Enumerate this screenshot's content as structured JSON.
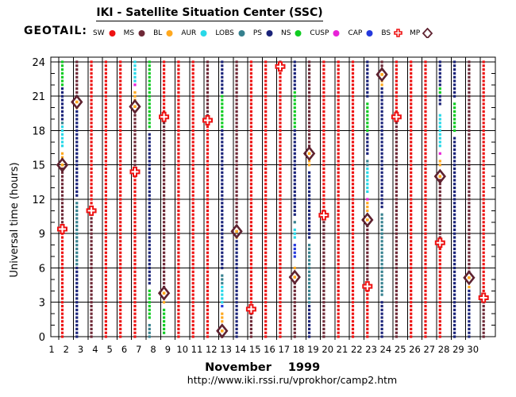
{
  "title": "IKI - Satellite Situation Center (SSC)",
  "satellite_label": "GEOTAIL:",
  "footer": {
    "month": "November",
    "year": "1999",
    "url": "http://www.iki.rssi.ru/vprokhor/camp2.htm"
  },
  "ylabel": "Universal time (hours)",
  "colors": {
    "SW": "#ee1212",
    "MS": "#6e2836",
    "BL": "#ffa81e",
    "AUR": "#28d8e8",
    "LOBS": "#35808e",
    "PS": "#1a2379",
    "NS": "#10cc22",
    "CUSP": "#e822d8",
    "CAP": "#2438dd",
    "BS": "#ee1212",
    "MP": "#5e2230",
    "MP_center": "#ffa81e",
    "axis": "#000000",
    "background": "#ffffff"
  },
  "legend": [
    {
      "label": "SW",
      "type": "dot",
      "color_key": "SW"
    },
    {
      "label": "MS",
      "type": "dot",
      "color_key": "MS"
    },
    {
      "label": "BL",
      "type": "dot",
      "color_key": "BL"
    },
    {
      "label": "AUR",
      "type": "dot",
      "color_key": "AUR"
    },
    {
      "label": "LOBS",
      "type": "dot",
      "color_key": "LOBS"
    },
    {
      "label": "PS",
      "type": "dot",
      "color_key": "PS"
    },
    {
      "label": "NS",
      "type": "dot",
      "color_key": "NS"
    },
    {
      "label": "CUSP",
      "type": "dot",
      "color_key": "CUSP"
    },
    {
      "label": "CAP",
      "type": "dot",
      "color_key": "CAP"
    },
    {
      "label": "BS",
      "type": "cross",
      "color_key": "BS"
    },
    {
      "label": "MP",
      "type": "diamond",
      "color_key": "MP"
    }
  ],
  "axes": {
    "y_major_ticks": [
      0,
      3,
      6,
      9,
      12,
      15,
      18,
      21,
      24
    ],
    "y_minor_step": 1,
    "x_tick_labels": [
      "1",
      "2",
      "3",
      "4",
      "5",
      "6",
      "7",
      "8",
      "9",
      "10",
      "11",
      "12",
      "13",
      "14",
      "15",
      "16",
      "17",
      "18",
      "19",
      "20",
      "21",
      "22",
      "23",
      "24",
      "25",
      "26",
      "27",
      "28",
      "29",
      "30"
    ],
    "ylim": [
      0,
      24
    ],
    "xlim": [
      1,
      31
    ],
    "grid": true
  },
  "chart_data": {
    "type": "scatter",
    "description": "GEOTAIL satellite magnetospheric region vs universal time for each day of November 1999. Regions drawn as colored dot columns (~20 min sampling); BS = bow shock crossing (open red cross), MP = magnetopause crossing (open dark diamond over orange dot).",
    "sample_step_hours": 0.3333,
    "days": [
      {
        "day": 1,
        "regions": [
          [
            "SW",
            0,
            9.3
          ],
          [
            "MS",
            9.6,
            14.8
          ],
          [
            "BL",
            15.6,
            16.3
          ],
          [
            "AUR",
            16.4,
            18.4
          ],
          [
            "LOBS",
            18.5,
            18.7
          ],
          [
            "PS",
            18.9,
            21.8
          ],
          [
            "NS",
            21.9,
            24.3
          ]
        ],
        "bs": [
          9.4
        ],
        "mp": [
          15.0
        ]
      },
      {
        "day": 2,
        "regions": [
          [
            "PS",
            0,
            6.0
          ],
          [
            "LOBS",
            6.1,
            11.9
          ],
          [
            "PS",
            12.1,
            19.8
          ],
          [
            "BL",
            19.9,
            20.2
          ],
          [
            "MS",
            20.8,
            24.3
          ]
        ],
        "bs": [],
        "mp": [
          20.5
        ]
      },
      {
        "day": 3,
        "regions": [
          [
            "MS",
            0,
            10.9
          ],
          [
            "SW",
            11.2,
            24.3
          ]
        ],
        "bs": [
          11.0
        ],
        "mp": []
      },
      {
        "day": 4,
        "regions": [
          [
            "SW",
            0,
            24.3
          ]
        ],
        "bs": [],
        "mp": []
      },
      {
        "day": 5,
        "regions": [
          [
            "SW",
            0,
            24.3
          ]
        ],
        "bs": [],
        "mp": []
      },
      {
        "day": 6,
        "regions": [
          [
            "SW",
            0,
            14.2
          ],
          [
            "MS",
            14.6,
            19.8
          ],
          [
            "BL",
            20.4,
            21.6
          ],
          [
            "CUSP",
            21.8,
            22.0
          ],
          [
            "AUR",
            22.2,
            24.3
          ]
        ],
        "bs": [
          14.4
        ],
        "mp": [
          20.1
        ]
      },
      {
        "day": 7,
        "regions": [
          [
            "LOBS",
            0,
            1.2
          ],
          [
            "NS",
            1.4,
            4.3
          ],
          [
            "PS",
            4.5,
            17.9
          ],
          [
            "NS",
            18.1,
            24.3
          ]
        ],
        "bs": [],
        "mp": []
      },
      {
        "day": 8,
        "regions": [
          [
            "NS",
            0.2,
            2.6
          ],
          [
            "BL",
            2.9,
            3.5
          ],
          [
            "MS",
            4.1,
            19.0
          ],
          [
            "SW",
            19.4,
            24.3
          ]
        ],
        "bs": [
          19.2
        ],
        "mp": [
          3.8
        ]
      },
      {
        "day": 9,
        "regions": [
          [
            "SW",
            0,
            24.3
          ]
        ],
        "bs": [],
        "mp": []
      },
      {
        "day": 10,
        "regions": [
          [
            "SW",
            0,
            24.3
          ]
        ],
        "bs": [],
        "mp": []
      },
      {
        "day": 11,
        "regions": [
          [
            "SW",
            0,
            18.7
          ],
          [
            "MS",
            19.1,
            24.3
          ]
        ],
        "bs": [
          18.9
        ],
        "mp": []
      },
      {
        "day": 12,
        "regions": [
          [
            "MS",
            0,
            0.2
          ],
          [
            "BL",
            1.2,
            2.0
          ],
          [
            "CUSP",
            2.1,
            2.3
          ],
          [
            "CAP",
            2.5,
            2.7
          ],
          [
            "AUR",
            2.9,
            4.4
          ],
          [
            "LOBS",
            4.6,
            5.5
          ],
          [
            "PS",
            5.7,
            18.0
          ],
          [
            "NS",
            18.2,
            21.1
          ],
          [
            "PS",
            21.3,
            24.3
          ]
        ],
        "bs": [],
        "mp": [
          0.5
        ]
      },
      {
        "day": 13,
        "regions": [
          [
            "PS",
            0,
            8.4
          ],
          [
            "BL",
            8.6,
            8.9
          ],
          [
            "MS",
            9.5,
            24.3
          ]
        ],
        "bs": [],
        "mp": [
          9.2
        ]
      },
      {
        "day": 14,
        "regions": [
          [
            "MS",
            0,
            2.2
          ],
          [
            "SW",
            2.6,
            24.3
          ]
        ],
        "bs": [
          2.4
        ],
        "mp": []
      },
      {
        "day": 15,
        "regions": [
          [
            "SW",
            0,
            24.3
          ]
        ],
        "bs": [],
        "mp": []
      },
      {
        "day": 16,
        "regions": [
          [
            "SW",
            0,
            23.4
          ],
          [
            "MS",
            23.8,
            24.3
          ]
        ],
        "bs": [
          23.6
        ],
        "mp": []
      },
      {
        "day": 17,
        "regions": [
          [
            "MS",
            0,
            4.9
          ],
          [
            "BL",
            5.9,
            6.3
          ],
          [
            "CUSP",
            6.4,
            6.6
          ],
          [
            "CAP",
            6.9,
            8.3
          ],
          [
            "AUR",
            8.5,
            9.6
          ],
          [
            "LOBS",
            9.8,
            10.3
          ],
          [
            "PS",
            10.5,
            18.1
          ],
          [
            "NS",
            18.3,
            21.4
          ],
          [
            "PS",
            21.6,
            24.3
          ]
        ],
        "bs": [],
        "mp": [
          5.2
        ]
      },
      {
        "day": 18,
        "regions": [
          [
            "PS",
            0,
            2.7
          ],
          [
            "LOBS",
            2.9,
            8.3
          ],
          [
            "PS",
            8.5,
            14.6
          ],
          [
            "BL",
            14.9,
            15.5
          ],
          [
            "MS",
            16.4,
            24.3
          ]
        ],
        "bs": [],
        "mp": [
          16.0
        ]
      },
      {
        "day": 19,
        "regions": [
          [
            "MS",
            0,
            10.4
          ],
          [
            "SW",
            10.8,
            24.3
          ]
        ],
        "bs": [
          10.6
        ],
        "mp": []
      },
      {
        "day": 20,
        "regions": [
          [
            "SW",
            0,
            24.3
          ]
        ],
        "bs": [],
        "mp": []
      },
      {
        "day": 21,
        "regions": [
          [
            "SW",
            0,
            24.3
          ]
        ],
        "bs": [],
        "mp": []
      },
      {
        "day": 22,
        "regions": [
          [
            "SW",
            0,
            4.2
          ],
          [
            "MS",
            4.6,
            9.9
          ],
          [
            "BL",
            10.9,
            11.7
          ],
          [
            "CUSP",
            11.9,
            12.1
          ],
          [
            "AUR",
            12.5,
            14.7
          ],
          [
            "LOBS",
            14.9,
            15.5
          ],
          [
            "PS",
            15.7,
            17.7
          ],
          [
            "NS",
            17.9,
            20.5
          ],
          [
            "PS",
            20.7,
            24.3
          ]
        ],
        "bs": [
          4.4
        ],
        "mp": [
          10.2
        ]
      },
      {
        "day": 23,
        "regions": [
          [
            "PS",
            0,
            3.3
          ],
          [
            "LOBS",
            3.5,
            10.9
          ],
          [
            "PS",
            11.1,
            21.7
          ],
          [
            "BL",
            21.9,
            22.4
          ],
          [
            "MS",
            23.2,
            24.3
          ]
        ],
        "bs": [],
        "mp": [
          22.9
        ]
      },
      {
        "day": 24,
        "regions": [
          [
            "MS",
            0,
            18.9
          ],
          [
            "SW",
            19.5,
            24.3
          ]
        ],
        "bs": [
          19.2
        ],
        "mp": []
      },
      {
        "day": 25,
        "regions": [
          [
            "SW",
            0,
            24.3
          ]
        ],
        "bs": [],
        "mp": []
      },
      {
        "day": 26,
        "regions": [
          [
            "SW",
            0,
            24.3
          ]
        ],
        "bs": [],
        "mp": []
      },
      {
        "day": 27,
        "regions": [
          [
            "SW",
            0,
            7.9
          ],
          [
            "MS",
            8.5,
            13.7
          ],
          [
            "BL",
            15.0,
            15.5
          ],
          [
            "CUSP",
            16.0,
            16.2
          ],
          [
            "AUR",
            16.5,
            19.5
          ],
          [
            "LOBS",
            19.7,
            19.9
          ],
          [
            "PS",
            20.1,
            21.1
          ],
          [
            "NS",
            21.2,
            21.7
          ],
          [
            "PS",
            21.9,
            24.3
          ]
        ],
        "bs": [
          8.2
        ],
        "mp": [
          14.0
        ]
      },
      {
        "day": 28,
        "regions": [
          [
            "PS",
            0,
            17.5
          ],
          [
            "NS",
            17.7,
            20.5
          ],
          [
            "PS",
            20.7,
            24.3
          ]
        ],
        "bs": [],
        "mp": []
      },
      {
        "day": 29,
        "regions": [
          [
            "PS",
            0,
            4.0
          ],
          [
            "BL",
            4.2,
            4.6
          ],
          [
            "MS",
            5.4,
            24.3
          ]
        ],
        "bs": [],
        "mp": [
          5.15
        ]
      },
      {
        "day": 30,
        "regions": [
          [
            "MS",
            0,
            3.2
          ],
          [
            "SW",
            3.6,
            24.3
          ]
        ],
        "bs": [
          3.4
        ],
        "mp": []
      }
    ]
  }
}
